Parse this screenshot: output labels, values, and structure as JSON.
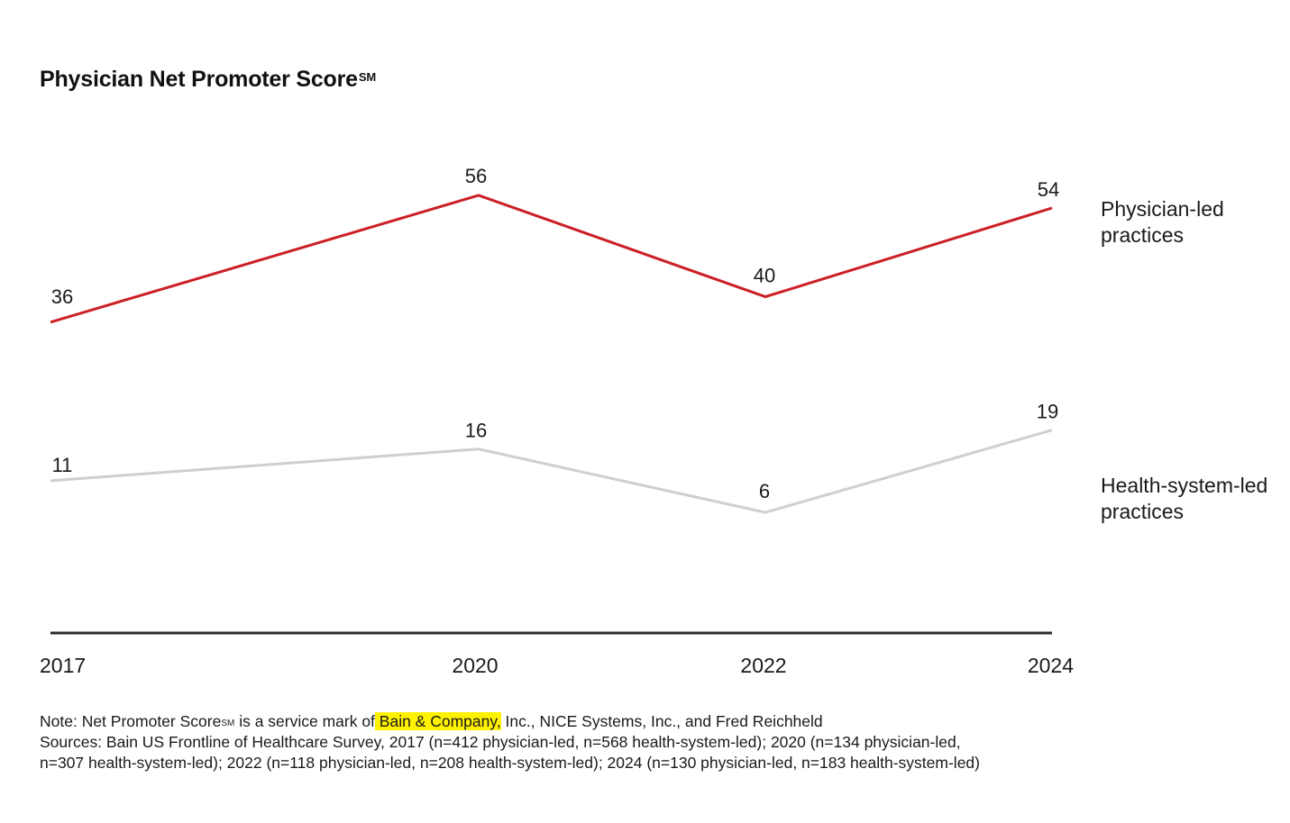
{
  "title": {
    "text": "Physician Net Promoter Score",
    "superscript": "SM"
  },
  "chart_data": {
    "type": "line",
    "title": "Physician Net Promoter Score℠",
    "categories": [
      "2017",
      "2020",
      "2022",
      "2024"
    ],
    "series": [
      {
        "name": "Physician-led practices",
        "name_lines": [
          "Physician-led",
          "practices"
        ],
        "values": [
          36,
          56,
          40,
          54
        ],
        "color": "#cc1f25"
      },
      {
        "name": "Health-system-led practices",
        "name_lines": [
          "Health-system-led",
          "practices"
        ],
        "values": [
          11,
          16,
          6,
          19
        ],
        "color": "#cfcfcf"
      }
    ],
    "grid": false,
    "data_labels": true,
    "legend_placement": "right, inline at line ends",
    "baseline_color": "#2b2b2b",
    "ylim": [
      -13,
      76
    ]
  },
  "footnotes": {
    "note_prefix": "Note: Net Promoter Score",
    "note_sup": "SM",
    "note_mid": " is a service mark of",
    "note_highlight": " Bain & Company,",
    "note_suffix": " Inc., NICE Systems, Inc., and Fred Reichheld",
    "sources_line1": "Sources: Bain US Frontline of Healthcare Survey, 2017 (n=412 physician-led, n=568 health-system-led); 2020 (n=134 physician-led,",
    "sources_line2": "n=307 health-system-led); 2022 (n=118 physician-led, n=208 health-system-led); 2024 (n=130 physician-led, n=183 health-system-led)",
    "highlight_color": "#fff200"
  }
}
